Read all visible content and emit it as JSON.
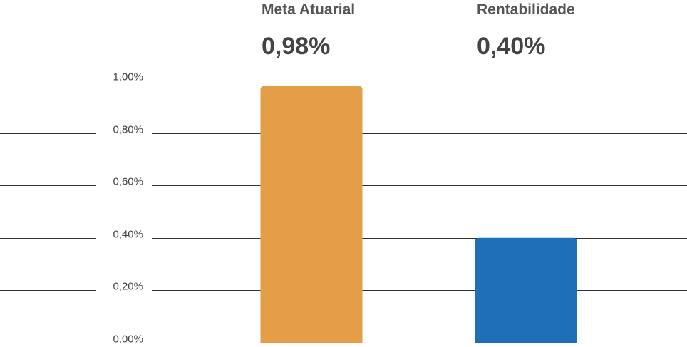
{
  "colors": {
    "gridline": "#333333",
    "tick_text": "#444444",
    "header_text": "#555555"
  },
  "chart_data": {
    "type": "bar",
    "categories": [
      "Meta Atuarial",
      "Rentabilidade"
    ],
    "values": [
      0.98,
      0.4
    ],
    "value_labels": [
      "0,98%",
      "0,40%"
    ],
    "bar_colors": [
      "#E59E48",
      "#1E6FB8"
    ],
    "yticks": [
      0,
      0.2,
      0.4,
      0.6,
      0.8,
      1.0
    ],
    "ytick_labels": [
      "0,00%",
      "0,20%",
      "0,40%",
      "0,60%",
      "0,80%",
      "1,00%"
    ],
    "ylim": [
      0,
      1.0
    ],
    "grid": true,
    "legend": "none",
    "title": "",
    "xlabel": "",
    "ylabel": ""
  }
}
